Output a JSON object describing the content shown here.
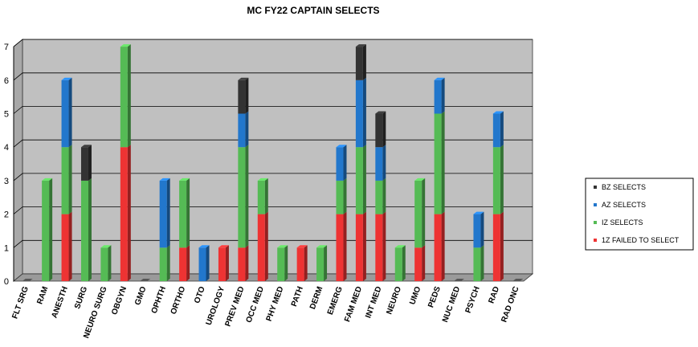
{
  "chart_data": {
    "type": "bar",
    "stacked": true,
    "title": "MC FY22 CAPTAIN SELECTS",
    "xlabel": "",
    "ylabel": "",
    "ylim": [
      0,
      7
    ],
    "yticks": [
      "0",
      "1",
      "2",
      "3",
      "4",
      "5",
      "6",
      "7"
    ],
    "grid": true,
    "legend_position": "right",
    "categories": [
      "FLT SRG",
      "RAM",
      "ANESTH",
      "SURG",
      "NEURO SURG",
      "OBGYN",
      "GMO",
      "OPHTH",
      "ORTHO",
      "OTO",
      "UROLOGY",
      "PREV MED",
      "OCC MED",
      "PHY MED",
      "PATH",
      "DERM",
      "EMERG",
      "FAM MED",
      "INT MED",
      "NEURO",
      "UMO",
      "PEDS",
      "NUC MED",
      "PSYCH",
      "RAD",
      "RAD ONC"
    ],
    "series": [
      {
        "name": "1Z FAILED TO SELECT",
        "color": "#ee3333",
        "values": [
          0,
          0,
          2,
          0,
          0,
          4,
          0,
          0,
          1,
          0,
          1,
          1,
          2,
          0,
          1,
          0,
          2,
          2,
          2,
          0,
          1,
          2,
          0,
          0,
          2,
          0
        ]
      },
      {
        "name": "IZ SELECTS",
        "color": "#55bb55",
        "values": [
          0,
          3,
          2,
          3,
          1,
          3,
          0,
          1,
          2,
          0,
          0,
          3,
          1,
          1,
          0,
          1,
          1,
          2,
          1,
          1,
          2,
          3,
          0,
          1,
          2,
          0
        ]
      },
      {
        "name": "AZ SELECTS",
        "color": "#2277cc",
        "values": [
          0,
          0,
          2,
          0,
          0,
          0,
          0,
          2,
          0,
          1,
          0,
          1,
          0,
          0,
          0,
          0,
          1,
          2,
          1,
          0,
          0,
          1,
          0,
          1,
          1,
          0
        ]
      },
      {
        "name": "BZ SELECTS",
        "color": "#333333",
        "values": [
          0,
          0,
          0,
          1,
          0,
          0,
          0,
          0,
          0,
          0,
          0,
          1,
          0,
          0,
          0,
          0,
          0,
          1,
          1,
          0,
          0,
          0,
          0,
          0,
          0,
          0
        ]
      }
    ],
    "legend_order": [
      "BZ SELECTS",
      "AZ SELECTS",
      "IZ SELECTS",
      "1Z FAILED TO SELECT"
    ],
    "plot_background": "#c0c0c0",
    "floor_color": "#9a9a9a"
  }
}
